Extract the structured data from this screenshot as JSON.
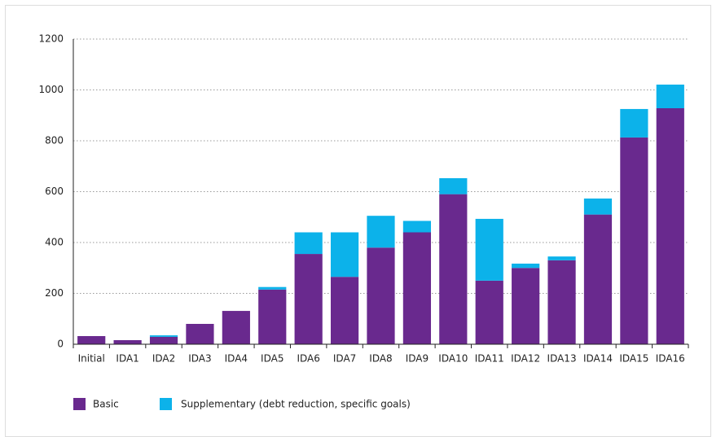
{
  "chart_data": {
    "type": "stacked_bar",
    "categories": [
      "Initial",
      "IDA1",
      "IDA2",
      "IDA3",
      "IDA4",
      "IDA5",
      "IDA6",
      "IDA7",
      "IDA8",
      "IDA9",
      "IDA10",
      "IDA11",
      "IDA12",
      "IDA13",
      "IDA14",
      "IDA15",
      "IDA16"
    ],
    "series": [
      {
        "name": "Basic",
        "color": "#69298e",
        "values": [
          32,
          16,
          29,
          80,
          131,
          215,
          355,
          265,
          380,
          440,
          590,
          250,
          300,
          330,
          510,
          813,
          928
        ]
      },
      {
        "name": "Supplementary (debt reduction, specific goals)",
        "color": "#0cb2ea",
        "values": [
          0,
          0,
          6,
          0,
          0,
          10,
          85,
          175,
          125,
          45,
          63,
          243,
          17,
          15,
          63,
          112,
          93
        ]
      }
    ],
    "ylim": [
      0,
      1200
    ],
    "yticks": [
      0,
      200,
      400,
      600,
      800,
      1000,
      1200
    ],
    "grid": true,
    "legend": "bottom"
  }
}
